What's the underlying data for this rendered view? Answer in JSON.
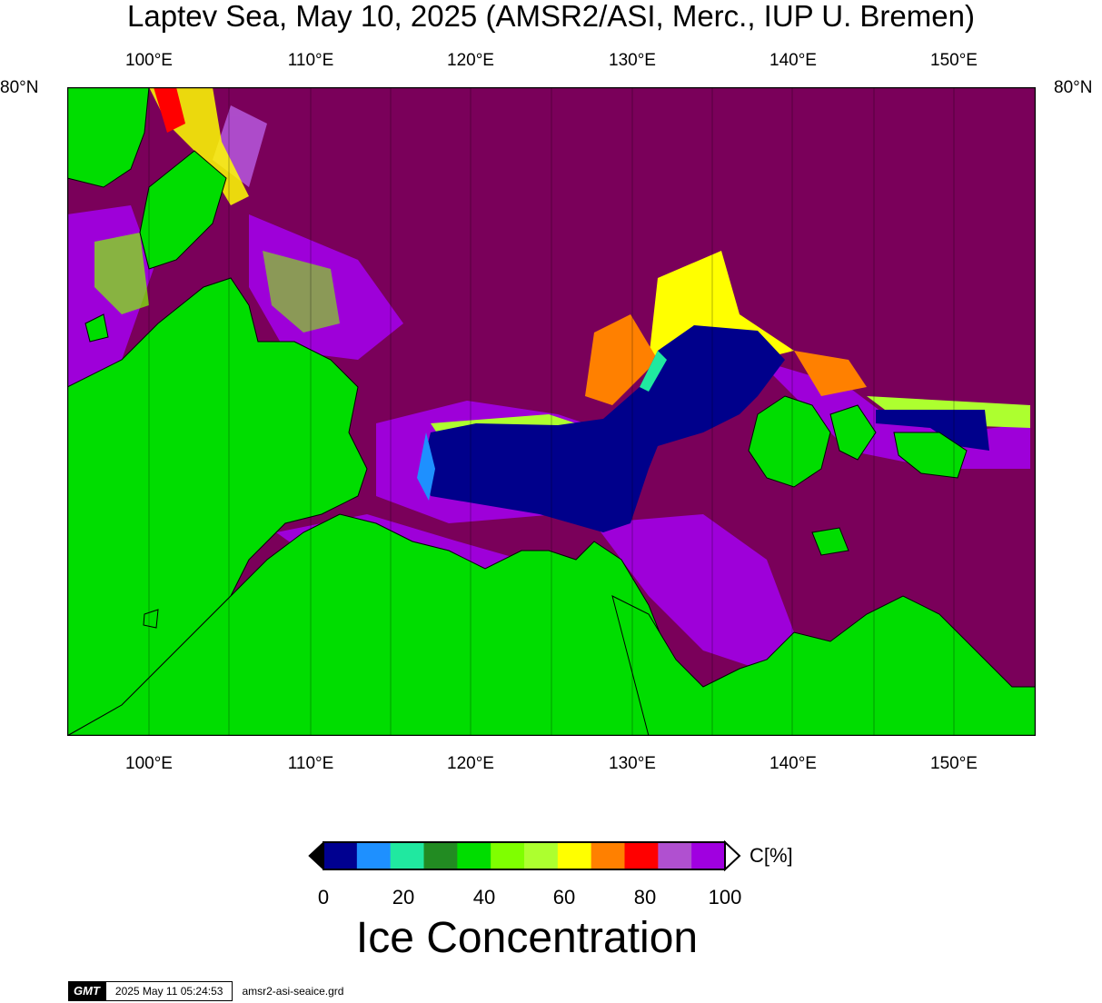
{
  "title": "Laptev Sea, May 10, 2025 (AMSR2/ASI, Merc., IUP U. Bremen)",
  "lon_labels": [
    "100°E",
    "110°E",
    "120°E",
    "130°E",
    "140°E",
    "150°E"
  ],
  "lat_label": "80°N",
  "colorbar": {
    "ticks": [
      "0",
      "20",
      "40",
      "60",
      "80",
      "100"
    ],
    "unit": "C[%]",
    "title": "Ice Concentration",
    "colors": [
      "#000090",
      "#1e90ff",
      "#20e8a0",
      "#228b22",
      "#00dd00",
      "#7fff00",
      "#adff2f",
      "#ffff00",
      "#ff8000",
      "#ff0000",
      "#b050d0",
      "#a000e0"
    ]
  },
  "map_colors": {
    "land": "#00dd00",
    "high_ice": "#7a005a",
    "open_water": "#00008b"
  },
  "stamp": {
    "logo": "GMT",
    "datetime": "2025 May 11 05:24:53",
    "file": "amsr2-asi-seaice.grd"
  }
}
